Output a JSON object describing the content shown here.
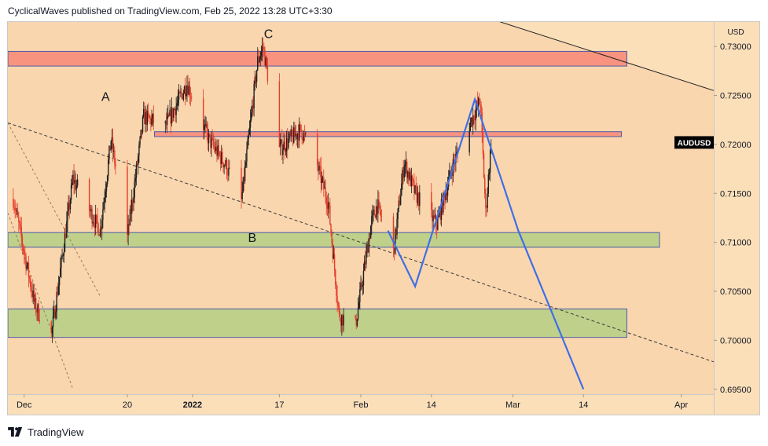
{
  "header": {
    "attribution": "CyclicalWaves published on TradingView.com, Feb 25, 2022 13:28 UTC+3:30"
  },
  "footer": {
    "brand": "TradingView"
  },
  "chart_data": {
    "type": "candlestick",
    "symbol": "AUDUSD",
    "currency": "USD",
    "last_price": 0.7202,
    "colors": {
      "plot_background": "#f9d6ae",
      "axis_background": "#fbdfb9",
      "up_candle": "#1e1e1e",
      "down_candle": "#e53c2a",
      "resistance_zone": "#f7937f",
      "support_zone": "#bfd08b",
      "zone_border": "#4e5ba8",
      "projection_path": "#3f6ee6",
      "trendline": "#222222",
      "price_label_bg": "#000000"
    },
    "y_axis": {
      "min": 0.6945,
      "max": 0.7325,
      "ticks": [
        0.695,
        0.7,
        0.705,
        0.71,
        0.715,
        0.72,
        0.725,
        0.73
      ],
      "tick_labels": [
        "0.69500",
        "0.70000",
        "0.70500",
        "0.71000",
        "0.71500",
        "0.72000",
        "0.72500",
        "0.73000"
      ]
    },
    "x_axis": {
      "ticks": [
        {
          "date": "2021-12-01",
          "label": "Dec",
          "bold": false
        },
        {
          "date": "2021-12-20",
          "label": "20",
          "bold": false
        },
        {
          "date": "2022-01-01",
          "label": "2022",
          "bold": true
        },
        {
          "date": "2022-01-17",
          "label": "17",
          "bold": false
        },
        {
          "date": "2022-02-01",
          "label": "Feb",
          "bold": false
        },
        {
          "date": "2022-02-14",
          "label": "14",
          "bold": false
        },
        {
          "date": "2022-03-01",
          "label": "Mar",
          "bold": false
        },
        {
          "date": "2022-03-14",
          "label": "14",
          "bold": false
        },
        {
          "date": "2022-04-01",
          "label": "Apr",
          "bold": false
        }
      ]
    },
    "ohlc_keypoints": [
      {
        "date": "2021-11-29",
        "price": 0.7145
      },
      {
        "date": "2021-12-03",
        "price": 0.7035
      },
      {
        "date": "2021-12-06",
        "price": 0.7005
      },
      {
        "date": "2021-12-10",
        "price": 0.7165
      },
      {
        "date": "2021-12-15",
        "price": 0.7112
      },
      {
        "date": "2021-12-17",
        "price": 0.7205
      },
      {
        "date": "2021-12-20",
        "price": 0.7105
      },
      {
        "date": "2021-12-23",
        "price": 0.7228
      },
      {
        "date": "2021-12-27",
        "price": 0.7218
      },
      {
        "date": "2021-12-31",
        "price": 0.7262
      },
      {
        "date": "2022-01-04",
        "price": 0.7205
      },
      {
        "date": "2022-01-07",
        "price": 0.718
      },
      {
        "date": "2022-01-10",
        "price": 0.7142
      },
      {
        "date": "2022-01-13",
        "price": 0.7285
      },
      {
        "date": "2022-01-14",
        "price": 0.73
      },
      {
        "date": "2022-01-17",
        "price": 0.7195
      },
      {
        "date": "2022-01-21",
        "price": 0.7215
      },
      {
        "date": "2022-01-24",
        "price": 0.7178
      },
      {
        "date": "2022-01-26",
        "price": 0.714
      },
      {
        "date": "2022-01-28",
        "price": 0.7025
      },
      {
        "date": "2022-01-31",
        "price": 0.7015
      },
      {
        "date": "2022-02-03",
        "price": 0.7122
      },
      {
        "date": "2022-02-04",
        "price": 0.7138
      },
      {
        "date": "2022-02-07",
        "price": 0.709
      },
      {
        "date": "2022-02-09",
        "price": 0.7182
      },
      {
        "date": "2022-02-11",
        "price": 0.715
      },
      {
        "date": "2022-02-15",
        "price": 0.7118
      },
      {
        "date": "2022-02-18",
        "price": 0.718
      },
      {
        "date": "2022-02-21",
        "price": 0.722
      },
      {
        "date": "2022-02-23",
        "price": 0.7245
      },
      {
        "date": "2022-02-24",
        "price": 0.713
      },
      {
        "date": "2022-02-25",
        "price": 0.7202
      }
    ],
    "zones": [
      {
        "name": "resistance-zone-upper",
        "kind": "resistance",
        "start": "2021-11-28",
        "end": "2022-03-22",
        "top": 0.7295,
        "bottom": 0.728
      },
      {
        "name": "resistance-zone-lower",
        "kind": "resistance",
        "start": "2021-12-25",
        "end": "2022-03-21",
        "top": 0.7213,
        "bottom": 0.7208
      },
      {
        "name": "support-zone-upper",
        "kind": "support",
        "start": "2021-11-28",
        "end": "2022-03-28",
        "top": 0.711,
        "bottom": 0.7095
      },
      {
        "name": "support-zone-lower",
        "kind": "support",
        "start": "2021-11-28",
        "end": "2022-03-22",
        "top": 0.7032,
        "bottom": 0.7003
      }
    ],
    "trendlines": [
      {
        "name": "descending-trendline-solid",
        "style": "solid",
        "points": [
          [
            "2022-02-20",
            0.7337
          ],
          [
            "2022-04-07",
            0.7255
          ]
        ]
      },
      {
        "name": "descending-trendline-dashed",
        "style": "dashed",
        "points": [
          [
            "2021-11-28",
            0.7222
          ],
          [
            "2022-04-07",
            0.6978
          ]
        ]
      },
      {
        "name": "channel-line-dotted",
        "style": "dashed",
        "points": [
          [
            "2021-11-28",
            0.7222
          ],
          [
            "2021-12-15",
            0.7045
          ]
        ]
      },
      {
        "name": "channel-line-dotted-lower",
        "style": "dashed",
        "points": [
          [
            "2021-11-28",
            0.713
          ],
          [
            "2021-12-10",
            0.695
          ]
        ]
      }
    ],
    "projection_path": [
      [
        "2022-02-06",
        0.7112
      ],
      [
        "2022-02-11",
        0.7055
      ],
      [
        "2022-02-22",
        0.7246
      ],
      [
        "2022-03-02",
        0.7112
      ],
      [
        "2022-03-14",
        0.695
      ]
    ],
    "wave_labels": [
      {
        "text": "A",
        "date": "2021-12-16",
        "price": 0.7248
      },
      {
        "text": "B",
        "date": "2022-01-12",
        "price": 0.7104
      },
      {
        "text": "C",
        "date": "2022-01-15",
        "price": 0.7312
      }
    ]
  }
}
